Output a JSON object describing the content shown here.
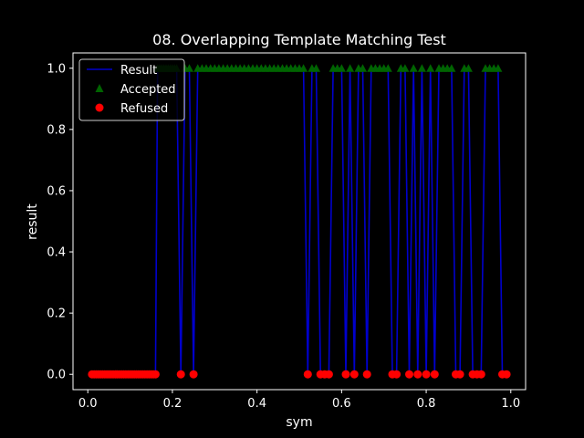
{
  "chart_data": {
    "type": "line",
    "title": "08. Overlapping Template Matching Test",
    "xlabel": "sym",
    "ylabel": "result",
    "xlim": [
      -0.035,
      1.035
    ],
    "ylim": [
      -0.05,
      1.05
    ],
    "xticks": [
      0.0,
      0.2,
      0.4,
      0.6,
      0.8,
      1.0
    ],
    "xtick_labels": [
      "0.0",
      "0.2",
      "0.4",
      "0.6",
      "0.8",
      "1.0"
    ],
    "yticks": [
      0.0,
      0.2,
      0.4,
      0.6,
      0.8,
      1.0
    ],
    "ytick_labels": [
      "0.0",
      "0.2",
      "0.4",
      "0.6",
      "0.8",
      "1.0"
    ],
    "grid": false,
    "legend_position": "upper-left",
    "legend": [
      "Result",
      "Accepted",
      "Refused"
    ],
    "colors": {
      "result": "#0000cc",
      "accepted": "#006400",
      "refused": "#ff0000",
      "axes": "#ffffff",
      "background": "#000000"
    },
    "series": [
      {
        "name": "Result",
        "kind": "line",
        "x": [
          0.01,
          0.015,
          0.02,
          0.025,
          0.03,
          0.035,
          0.04,
          0.045,
          0.05,
          0.055,
          0.06,
          0.065,
          0.07,
          0.075,
          0.08,
          0.085,
          0.09,
          0.095,
          0.1,
          0.105,
          0.11,
          0.115,
          0.12,
          0.125,
          0.13,
          0.135,
          0.14,
          0.145,
          0.15,
          0.155,
          0.16,
          0.165,
          0.17,
          0.175,
          0.18,
          0.185,
          0.19,
          0.195,
          0.2,
          0.205,
          0.21,
          0.22,
          0.23,
          0.24,
          0.25,
          0.26,
          0.27,
          0.28,
          0.29,
          0.3,
          0.31,
          0.32,
          0.33,
          0.34,
          0.35,
          0.36,
          0.37,
          0.38,
          0.39,
          0.4,
          0.41,
          0.42,
          0.43,
          0.44,
          0.45,
          0.46,
          0.47,
          0.48,
          0.49,
          0.5,
          0.51,
          0.52,
          0.53,
          0.54,
          0.55,
          0.56,
          0.57,
          0.58,
          0.59,
          0.6,
          0.61,
          0.62,
          0.63,
          0.64,
          0.65,
          0.66,
          0.67,
          0.68,
          0.69,
          0.7,
          0.71,
          0.72,
          0.73,
          0.74,
          0.75,
          0.76,
          0.77,
          0.78,
          0.79,
          0.8,
          0.81,
          0.82,
          0.83,
          0.84,
          0.85,
          0.86,
          0.87,
          0.88,
          0.89,
          0.9,
          0.91,
          0.92,
          0.93,
          0.94,
          0.95,
          0.96,
          0.97,
          0.98,
          0.99
        ],
        "y": [
          0,
          0,
          0,
          0,
          0,
          0,
          0,
          0,
          0,
          0,
          0,
          0,
          0,
          0,
          0,
          0,
          0,
          0,
          0,
          0,
          0,
          0,
          0,
          0,
          0,
          0,
          0,
          0,
          0,
          0,
          0,
          1,
          1,
          1,
          1,
          1,
          1,
          1,
          1,
          1,
          1,
          0,
          1,
          1,
          0,
          1,
          1,
          1,
          1,
          1,
          1,
          1,
          1,
          1,
          1,
          1,
          1,
          1,
          1,
          1,
          1,
          1,
          1,
          1,
          1,
          1,
          1,
          1,
          1,
          1,
          1,
          0,
          1,
          1,
          0,
          0,
          0,
          1,
          1,
          1,
          0,
          1,
          0,
          1,
          1,
          0,
          1,
          1,
          1,
          1,
          1,
          0,
          0,
          1,
          1,
          0,
          1,
          0,
          1,
          0,
          1,
          0,
          1,
          1,
          1,
          1,
          0,
          0,
          1,
          1,
          0,
          0,
          0,
          1,
          1,
          1,
          1,
          0,
          0
        ]
      },
      {
        "name": "Accepted",
        "kind": "marker-triangle",
        "x": [
          0.165,
          0.17,
          0.175,
          0.18,
          0.185,
          0.19,
          0.195,
          0.2,
          0.205,
          0.21,
          0.23,
          0.24,
          0.26,
          0.27,
          0.28,
          0.29,
          0.3,
          0.31,
          0.32,
          0.33,
          0.34,
          0.35,
          0.36,
          0.37,
          0.38,
          0.39,
          0.4,
          0.41,
          0.42,
          0.43,
          0.44,
          0.45,
          0.46,
          0.47,
          0.48,
          0.49,
          0.5,
          0.51,
          0.53,
          0.54,
          0.58,
          0.59,
          0.6,
          0.62,
          0.64,
          0.65,
          0.67,
          0.68,
          0.69,
          0.7,
          0.71,
          0.74,
          0.75,
          0.77,
          0.79,
          0.81,
          0.83,
          0.84,
          0.85,
          0.86,
          0.89,
          0.9,
          0.94,
          0.95,
          0.96,
          0.97
        ]
      },
      {
        "name": "Refused",
        "kind": "marker-circle",
        "x": [
          0.01,
          0.015,
          0.02,
          0.025,
          0.03,
          0.035,
          0.04,
          0.045,
          0.05,
          0.055,
          0.06,
          0.065,
          0.07,
          0.075,
          0.08,
          0.085,
          0.09,
          0.095,
          0.1,
          0.105,
          0.11,
          0.115,
          0.12,
          0.125,
          0.13,
          0.135,
          0.14,
          0.145,
          0.15,
          0.155,
          0.16,
          0.22,
          0.25,
          0.52,
          0.55,
          0.56,
          0.57,
          0.61,
          0.63,
          0.66,
          0.72,
          0.73,
          0.76,
          0.78,
          0.8,
          0.82,
          0.87,
          0.88,
          0.91,
          0.92,
          0.93,
          0.98,
          0.99
        ]
      }
    ]
  }
}
